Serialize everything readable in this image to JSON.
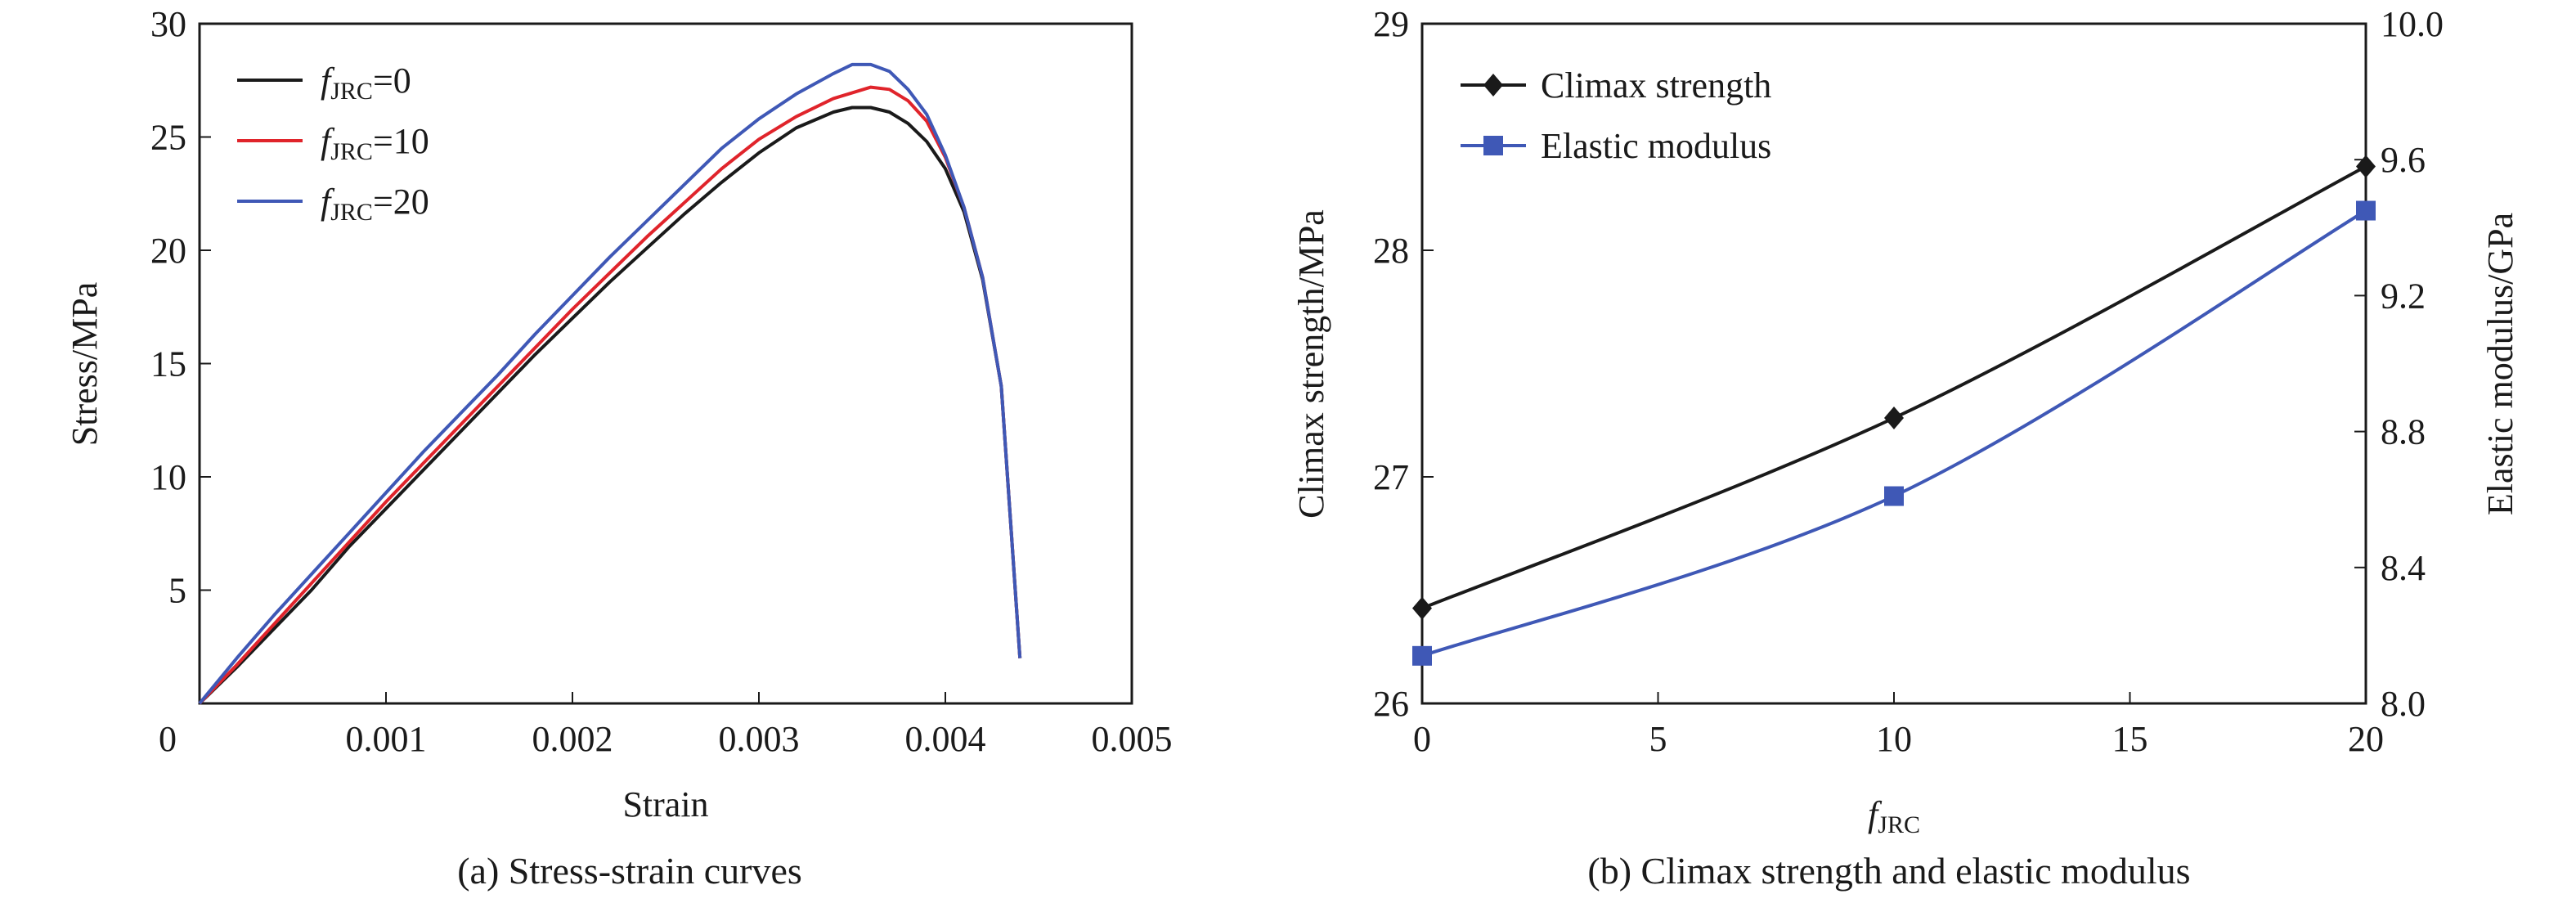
{
  "chart_data": [
    {
      "type": "line",
      "caption": "(a) Stress-strain curves",
      "xlabel": "Strain",
      "ylabel": "Stress/MPa",
      "xlim": [
        0,
        0.005
      ],
      "ylim": [
        0,
        30
      ],
      "x_ticks": [
        "0",
        "0.001",
        "0.002",
        "0.003",
        "0.004",
        "0.005"
      ],
      "y_ticks": [
        "5",
        "10",
        "15",
        "20",
        "25",
        "30"
      ],
      "x_tick_values": [
        0,
        0.001,
        0.002,
        0.003,
        0.004,
        0.005
      ],
      "y_tick_values": [
        5,
        10,
        15,
        20,
        25,
        30
      ],
      "legend_position": "top-left",
      "series": [
        {
          "name_main": "f",
          "name_sub": "JRC",
          "name_suffix": "=0",
          "color": "#1a1a1a",
          "points": [
            [
              0,
              0
            ],
            [
              0.0002,
              1.6
            ],
            [
              0.0004,
              3.3
            ],
            [
              0.0006,
              5.0
            ],
            [
              0.0008,
              6.9
            ],
            [
              0.001,
              8.6
            ],
            [
              0.0012,
              10.3
            ],
            [
              0.0014,
              12.0
            ],
            [
              0.0016,
              13.7
            ],
            [
              0.0018,
              15.4
            ],
            [
              0.002,
              17.0
            ],
            [
              0.0022,
              18.6
            ],
            [
              0.0024,
              20.1
            ],
            [
              0.0026,
              21.6
            ],
            [
              0.0028,
              23.0
            ],
            [
              0.003,
              24.3
            ],
            [
              0.0032,
              25.4
            ],
            [
              0.0034,
              26.1
            ],
            [
              0.0035,
              26.3
            ],
            [
              0.0036,
              26.3
            ],
            [
              0.0037,
              26.1
            ],
            [
              0.0038,
              25.6
            ],
            [
              0.0039,
              24.8
            ],
            [
              0.004,
              23.6
            ],
            [
              0.0041,
              21.7
            ],
            [
              0.0042,
              18.7
            ],
            [
              0.0043,
              14.0
            ],
            [
              0.0044,
              2.0
            ]
          ]
        },
        {
          "name_main": "f",
          "name_sub": "JRC",
          "name_suffix": "=10",
          "color": "#e0242b",
          "points": [
            [
              0,
              0
            ],
            [
              0.0002,
              1.7
            ],
            [
              0.0004,
              3.5
            ],
            [
              0.0006,
              5.3
            ],
            [
              0.0008,
              7.1
            ],
            [
              0.001,
              8.9
            ],
            [
              0.0012,
              10.6
            ],
            [
              0.0014,
              12.3
            ],
            [
              0.0016,
              14.0
            ],
            [
              0.0018,
              15.7
            ],
            [
              0.002,
              17.4
            ],
            [
              0.0022,
              19.0
            ],
            [
              0.0024,
              20.6
            ],
            [
              0.0026,
              22.1
            ],
            [
              0.0028,
              23.6
            ],
            [
              0.003,
              24.9
            ],
            [
              0.0032,
              25.9
            ],
            [
              0.0034,
              26.7
            ],
            [
              0.0036,
              27.2
            ],
            [
              0.0037,
              27.1
            ],
            [
              0.0038,
              26.6
            ],
            [
              0.0039,
              25.7
            ],
            [
              0.004,
              24.1
            ],
            [
              0.0041,
              21.9
            ],
            [
              0.0042,
              18.8
            ],
            [
              0.0043,
              14.0
            ],
            [
              0.0044,
              2.0
            ]
          ]
        },
        {
          "name_main": "f",
          "name_sub": "JRC",
          "name_suffix": "=20",
          "color": "#3f58b6",
          "points": [
            [
              0,
              0
            ],
            [
              0.0002,
              2.0
            ],
            [
              0.0004,
              3.9
            ],
            [
              0.0006,
              5.7
            ],
            [
              0.0008,
              7.5
            ],
            [
              0.001,
              9.3
            ],
            [
              0.0012,
              11.1
            ],
            [
              0.0014,
              12.8
            ],
            [
              0.0016,
              14.5
            ],
            [
              0.0018,
              16.3
            ],
            [
              0.002,
              18.0
            ],
            [
              0.0022,
              19.7
            ],
            [
              0.0024,
              21.3
            ],
            [
              0.0026,
              22.9
            ],
            [
              0.0028,
              24.5
            ],
            [
              0.003,
              25.8
            ],
            [
              0.0032,
              26.9
            ],
            [
              0.0034,
              27.8
            ],
            [
              0.0035,
              28.2
            ],
            [
              0.0036,
              28.2
            ],
            [
              0.0037,
              27.9
            ],
            [
              0.0038,
              27.1
            ],
            [
              0.0039,
              26.0
            ],
            [
              0.004,
              24.2
            ],
            [
              0.0041,
              21.9
            ],
            [
              0.0042,
              18.8
            ],
            [
              0.0043,
              14.0
            ],
            [
              0.0044,
              2.0
            ]
          ]
        }
      ]
    },
    {
      "type": "line",
      "caption": "(b) Climax strength and elastic modulus",
      "xlabel_main": "f",
      "xlabel_sub": "JRC",
      "ylabel": "Climax strength/MPa",
      "y2label": "Elastic modulus/GPa",
      "xlim": [
        0,
        20
      ],
      "ylim": [
        26,
        29
      ],
      "y2lim": [
        8.0,
        10.0
      ],
      "x_ticks": [
        "0",
        "5",
        "10",
        "15",
        "20"
      ],
      "y_ticks": [
        "26",
        "27",
        "28",
        "29"
      ],
      "y2_ticks": [
        "8.0",
        "8.4",
        "8.8",
        "9.2",
        "9.6",
        "10.0"
      ],
      "x_tick_values": [
        0,
        5,
        10,
        15,
        20
      ],
      "y_tick_values": [
        26,
        27,
        28,
        29
      ],
      "y2_tick_values": [
        8.0,
        8.4,
        8.8,
        9.2,
        9.6,
        10.0
      ],
      "legend_position": "top-left",
      "series": [
        {
          "name": "Climax strength",
          "axis": "left",
          "marker": "diamond",
          "color": "#1a1a1a",
          "x": [
            0,
            10,
            20
          ],
          "y": [
            26.42,
            27.26,
            28.37
          ]
        },
        {
          "name": "Elastic modulus",
          "axis": "right",
          "marker": "square",
          "color": "#3f58b6",
          "x": [
            0,
            10,
            20
          ],
          "y": [
            8.14,
            8.61,
            9.45
          ]
        }
      ]
    }
  ]
}
